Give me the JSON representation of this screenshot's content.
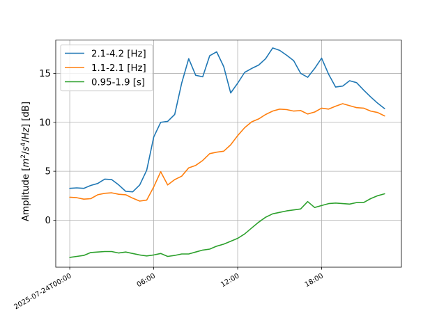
{
  "chart_data": {
    "type": "line",
    "xlabel": "",
    "ylabel": "Amplitude [m²/s⁴/Hz] [dB]",
    "ylabel_parts": {
      "prefix": "Amplitude [",
      "m": "m",
      "sup2": "2",
      "slash1": "/",
      "s": "s",
      "sup4": "4",
      "slash2": "/",
      "Hz": "Hz",
      "suffix": "] [dB]"
    },
    "x_unit": "hours since 2025-07-24T00:00",
    "xlim": [
      -1,
      23.7
    ],
    "ylim": [
      -4.8,
      18.4
    ],
    "grid": true,
    "legend_position": "upper left",
    "x_ticks": [
      {
        "value": 0,
        "label": "2025-07-24T00:00"
      },
      {
        "value": 6,
        "label": "06:00"
      },
      {
        "value": 12,
        "label": "12:00"
      },
      {
        "value": 18,
        "label": "18:00"
      }
    ],
    "y_ticks": [
      {
        "value": 0,
        "label": "0"
      },
      {
        "value": 5,
        "label": "5"
      },
      {
        "value": 10,
        "label": "10"
      },
      {
        "value": 15,
        "label": "15"
      }
    ],
    "x": [
      0,
      0.5,
      1,
      1.5,
      2,
      2.5,
      3,
      3.5,
      4,
      4.5,
      5,
      5.5,
      6,
      6.5,
      7,
      7.5,
      8,
      8.5,
      9,
      9.5,
      10,
      10.5,
      11,
      11.5,
      12,
      12.5,
      13,
      13.5,
      14,
      14.5,
      15,
      15.5,
      16,
      16.5,
      17,
      17.5,
      18,
      18.5,
      19,
      19.5,
      20,
      20.5,
      21,
      21.5,
      22,
      22.5
    ],
    "series": [
      {
        "name": "2.1-4.2 [Hz]",
        "color": "#1f77b4",
        "values": [
          3.25,
          3.3,
          3.25,
          3.55,
          3.75,
          4.2,
          4.15,
          3.6,
          2.95,
          2.9,
          3.6,
          5.1,
          8.5,
          10.0,
          10.1,
          10.8,
          14.0,
          16.5,
          14.8,
          14.65,
          16.8,
          17.2,
          15.7,
          13.0,
          14.0,
          15.1,
          15.5,
          15.85,
          16.5,
          17.6,
          17.35,
          16.85,
          16.3,
          15.0,
          14.6,
          15.5,
          16.55,
          14.9,
          13.6,
          13.7,
          14.25,
          14.05,
          13.3,
          12.6,
          11.95,
          11.4
        ]
      },
      {
        "name": "1.1-2.1 [Hz]",
        "color": "#ff7f0e",
        "values": [
          2.35,
          2.3,
          2.15,
          2.2,
          2.6,
          2.75,
          2.8,
          2.65,
          2.6,
          2.25,
          1.95,
          2.05,
          3.4,
          4.95,
          3.6,
          4.15,
          4.5,
          5.35,
          5.6,
          6.1,
          6.8,
          6.95,
          7.05,
          7.7,
          8.65,
          9.45,
          10.05,
          10.35,
          10.8,
          11.15,
          11.35,
          11.3,
          11.15,
          11.2,
          10.85,
          11.05,
          11.45,
          11.35,
          11.65,
          11.9,
          11.7,
          11.5,
          11.45,
          11.15,
          11.0,
          10.65
        ]
      },
      {
        "name": "0.95-1.9 [s]",
        "color": "#2ca02c",
        "values": [
          -3.8,
          -3.7,
          -3.6,
          -3.3,
          -3.25,
          -3.2,
          -3.2,
          -3.35,
          -3.25,
          -3.4,
          -3.55,
          -3.65,
          -3.55,
          -3.4,
          -3.7,
          -3.6,
          -3.45,
          -3.45,
          -3.25,
          -3.05,
          -2.95,
          -2.65,
          -2.45,
          -2.15,
          -1.85,
          -1.4,
          -0.8,
          -0.2,
          0.3,
          0.65,
          0.8,
          0.95,
          1.05,
          1.15,
          1.9,
          1.3,
          1.5,
          1.7,
          1.75,
          1.7,
          1.65,
          1.8,
          1.8,
          2.2,
          2.5,
          2.7
        ]
      }
    ]
  }
}
